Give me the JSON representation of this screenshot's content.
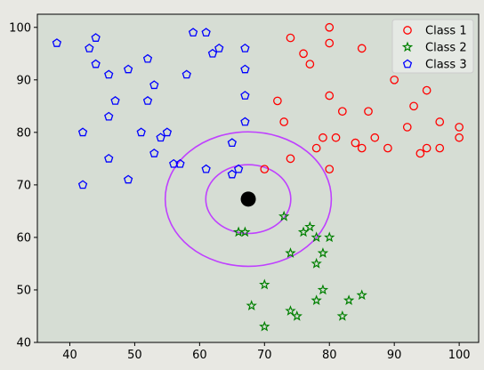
{
  "chart_data": {
    "type": "scatter",
    "title": "",
    "xlabel": "",
    "ylabel": "",
    "xlim": [
      35,
      103
    ],
    "ylim": [
      40,
      102.5
    ],
    "x_ticks": [
      40,
      50,
      60,
      70,
      80,
      90,
      100
    ],
    "y_ticks": [
      40,
      50,
      60,
      70,
      80,
      90,
      100
    ],
    "grid": false,
    "background_color": "#d6ddd4",
    "legend_position": "top-right",
    "series": [
      {
        "name": "Class 1",
        "marker": "circle",
        "filled": false,
        "color": "#ff0000",
        "points": [
          [
            74,
            98
          ],
          [
            76,
            95
          ],
          [
            77,
            93
          ],
          [
            80,
            100
          ],
          [
            80,
            97
          ],
          [
            85,
            96
          ],
          [
            72,
            86
          ],
          [
            73,
            82
          ],
          [
            80,
            87
          ],
          [
            82,
            84
          ],
          [
            86,
            84
          ],
          [
            90,
            90
          ],
          [
            93,
            85
          ],
          [
            95,
            88
          ],
          [
            92,
            81
          ],
          [
            97,
            82
          ],
          [
            100,
            81
          ],
          [
            100,
            79
          ],
          [
            79,
            79
          ],
          [
            81,
            79
          ],
          [
            84,
            78
          ],
          [
            85,
            77
          ],
          [
            87,
            79
          ],
          [
            89,
            77
          ],
          [
            94,
            76
          ],
          [
            95,
            77
          ],
          [
            97,
            77
          ],
          [
            78,
            77
          ],
          [
            70,
            73
          ],
          [
            74,
            75
          ],
          [
            80,
            73
          ]
        ]
      },
      {
        "name": "Class 2",
        "marker": "star",
        "filled": false,
        "color": "#008000",
        "points": [
          [
            66,
            61
          ],
          [
            67,
            61
          ],
          [
            73,
            64
          ],
          [
            76,
            61
          ],
          [
            77,
            62
          ],
          [
            78,
            60
          ],
          [
            80,
            60
          ],
          [
            74,
            57
          ],
          [
            79,
            57
          ],
          [
            78,
            55
          ],
          [
            70,
            51
          ],
          [
            79,
            50
          ],
          [
            85,
            49
          ],
          [
            78,
            48
          ],
          [
            83,
            48
          ],
          [
            68,
            47
          ],
          [
            74,
            46
          ],
          [
            75,
            45
          ],
          [
            82,
            45
          ],
          [
            70,
            43
          ]
        ]
      },
      {
        "name": "Class 3",
        "marker": "pentagon",
        "filled": false,
        "color": "#0000ff",
        "points": [
          [
            38,
            97
          ],
          [
            44,
            98
          ],
          [
            43,
            96
          ],
          [
            44,
            93
          ],
          [
            46,
            91
          ],
          [
            49,
            92
          ],
          [
            52,
            94
          ],
          [
            59,
            99
          ],
          [
            61,
            99
          ],
          [
            63,
            96
          ],
          [
            62,
            95
          ],
          [
            67,
            96
          ],
          [
            67,
            92
          ],
          [
            58,
            91
          ],
          [
            53,
            89
          ],
          [
            67,
            87
          ],
          [
            47,
            86
          ],
          [
            52,
            86
          ],
          [
            46,
            83
          ],
          [
            67,
            82
          ],
          [
            42,
            80
          ],
          [
            51,
            80
          ],
          [
            55,
            80
          ],
          [
            54,
            79
          ],
          [
            65,
            78
          ],
          [
            53,
            76
          ],
          [
            46,
            75
          ],
          [
            56,
            74
          ],
          [
            57,
            74
          ],
          [
            61,
            73
          ],
          [
            66,
            73
          ],
          [
            65,
            72
          ],
          [
            49,
            71
          ],
          [
            42,
            70
          ]
        ]
      }
    ],
    "query_point": {
      "x": 67.5,
      "y": 67.3,
      "color": "#000000"
    },
    "radius_circles": [
      {
        "cx": 67.5,
        "cy": 67.3,
        "r": 6.55,
        "color": "#bf40ff"
      },
      {
        "cx": 67.5,
        "cy": 67.3,
        "r": 12.8,
        "color": "#bf40ff"
      }
    ]
  }
}
